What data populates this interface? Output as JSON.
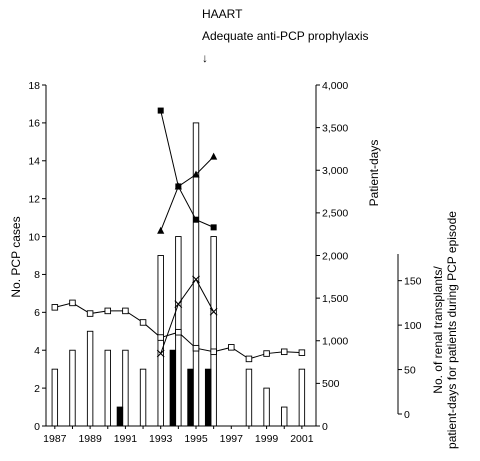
{
  "chart_data": {
    "type": "bar+line",
    "annotation": [
      "HAART",
      "Adequate anti-PCP prophylaxis",
      "↓"
    ],
    "annotation_year": 1995,
    "xlabel": "",
    "x_tick_labels": [
      "1987",
      "1989",
      "1991",
      "1993",
      "1995",
      "1997",
      "1999",
      "2001"
    ],
    "x_tick_years": [
      1987,
      1989,
      1991,
      1993,
      1995,
      1997,
      1999,
      2001
    ],
    "years": [
      1987,
      1988,
      1989,
      1990,
      1991,
      1992,
      1993,
      1994,
      1995,
      1996,
      1997,
      1998,
      1999,
      2000,
      2001
    ],
    "left_axis": {
      "label": "No. PCP cases",
      "range": [
        0,
        18
      ],
      "ticks": [
        0,
        2,
        4,
        6,
        8,
        10,
        12,
        14,
        16,
        18
      ]
    },
    "right_axis_1": {
      "label": "Patient-days",
      "range": [
        0,
        4000
      ],
      "ticks": [
        0,
        500,
        1000,
        1500,
        2000,
        2500,
        3000,
        3500,
        4000
      ],
      "tick_labels": [
        "0",
        "500",
        "1,000",
        "1,500",
        "2,000",
        "2,500",
        "3,000",
        "3,500",
        "4,000"
      ]
    },
    "right_axis_2": {
      "label_lines": [
        "No. of renal transplants/",
        "patient-days for patients during PCP episode"
      ],
      "range": [
        0,
        180
      ],
      "ticks": [
        0,
        50,
        100,
        150
      ],
      "tick_labels": [
        "0",
        "50",
        "100",
        "150"
      ]
    },
    "bars": {
      "open": [
        3,
        4,
        5,
        4,
        4,
        3,
        9,
        10,
        16,
        10,
        0,
        3,
        2,
        1,
        3
      ],
      "solid": [
        0,
        0,
        0,
        0,
        1,
        0,
        0,
        4,
        3,
        3,
        0,
        0,
        0,
        0,
        0
      ]
    },
    "series": [
      {
        "marker": "open-square",
        "axis": "right_axis_2",
        "x": [
          1987,
          1988,
          1989,
          1990,
          1991,
          1992,
          1993,
          1994,
          1995,
          1996,
          1997,
          1998,
          1999,
          2000,
          2001
        ],
        "values": [
          120,
          125,
          113,
          116,
          116,
          103,
          86,
          92,
          74,
          70,
          75,
          62,
          68,
          70,
          69
        ]
      },
      {
        "marker": "filled-square",
        "axis": "right_axis_1",
        "x": [
          1993,
          1994,
          1995,
          1996
        ],
        "values": [
          3700,
          2810,
          2420,
          2330
        ]
      },
      {
        "marker": "filled-triangle",
        "axis": "right_axis_1",
        "x": [
          1993,
          1994,
          1995,
          1996
        ],
        "values": [
          2290,
          2810,
          2950,
          3160
        ]
      },
      {
        "marker": "x",
        "axis": "right_axis_1",
        "x": [
          1993,
          1994,
          1995,
          1996
        ],
        "values": [
          850,
          1430,
          1720,
          1340
        ]
      }
    ]
  }
}
